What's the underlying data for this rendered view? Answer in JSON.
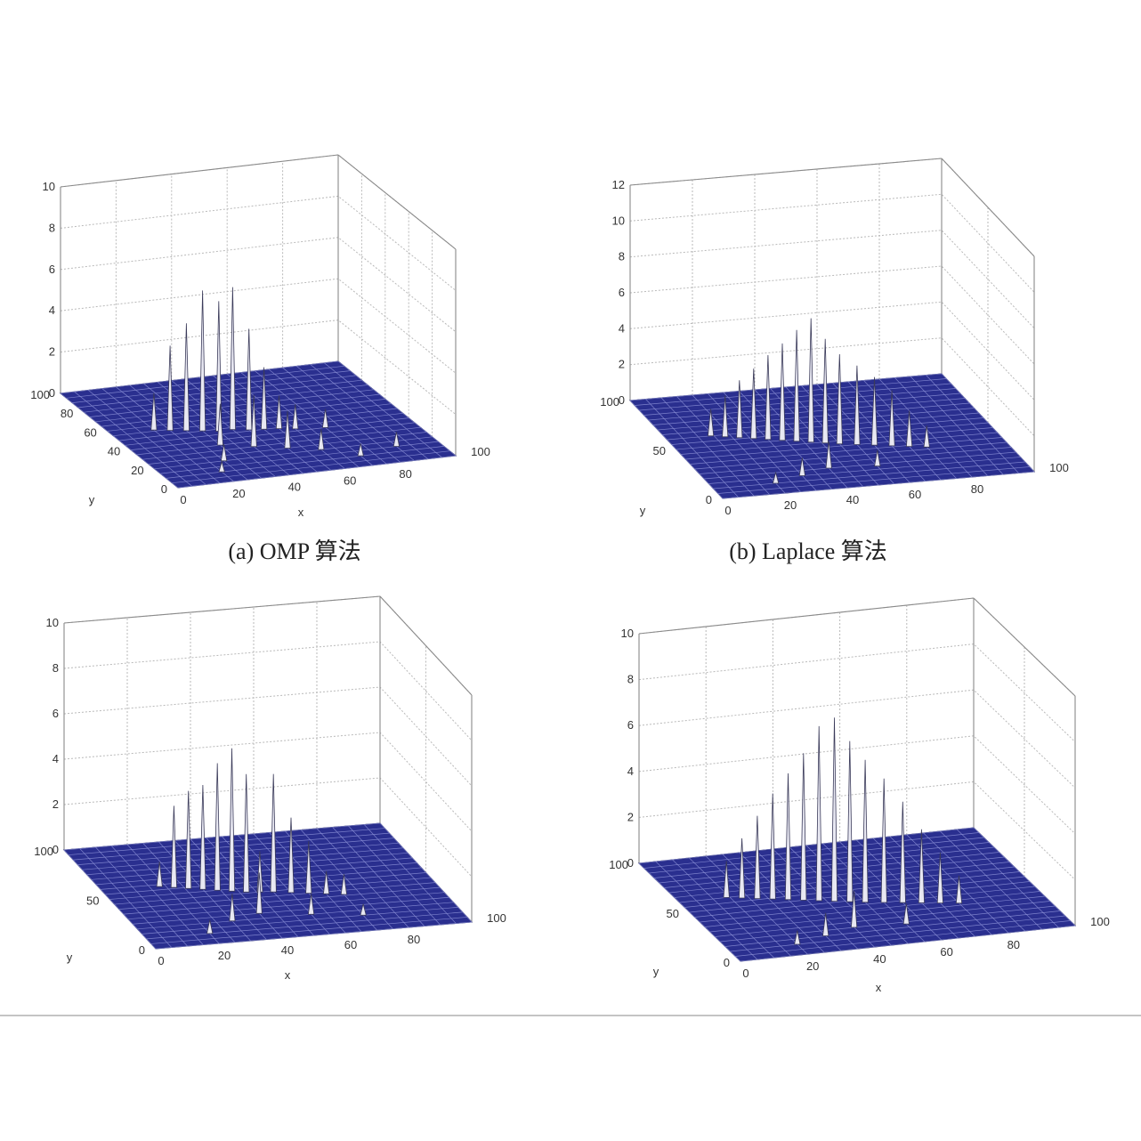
{
  "chart_data": [
    {
      "type": "surface3d",
      "caption": "(a) OMP 算法",
      "xlabel": "x",
      "ylabel": "y",
      "zlabel": "",
      "xlim": [
        0,
        100
      ],
      "ylim": [
        0,
        100
      ],
      "zlim": [
        0,
        10
      ],
      "xticks": [
        "0",
        "20",
        "40",
        "60",
        "80",
        "100"
      ],
      "yticks": [
        "0",
        "20",
        "40",
        "60",
        "80",
        "100"
      ],
      "zticks": [
        "0",
        "2",
        "4",
        "6",
        "8",
        "10"
      ],
      "grid": true,
      "surface_color": "#2a2f8f",
      "peaks": [
        {
          "x": 30,
          "y": 50,
          "z": 6.8
        },
        {
          "x": 40,
          "y": 48,
          "z": 6.9
        },
        {
          "x": 35,
          "y": 48,
          "z": 6.3
        },
        {
          "x": 25,
          "y": 52,
          "z": 5.2
        },
        {
          "x": 45,
          "y": 46,
          "z": 4.9
        },
        {
          "x": 20,
          "y": 54,
          "z": 4.1
        },
        {
          "x": 50,
          "y": 45,
          "z": 3.0
        },
        {
          "x": 55,
          "y": 44,
          "z": 1.6
        },
        {
          "x": 15,
          "y": 56,
          "z": 1.8
        },
        {
          "x": 60,
          "y": 42,
          "z": 1.2
        },
        {
          "x": 70,
          "y": 40,
          "z": 0.9
        },
        {
          "x": 85,
          "y": 15,
          "z": 0.7
        },
        {
          "x": 40,
          "y": 30,
          "z": 2.5
        },
        {
          "x": 50,
          "y": 25,
          "z": 1.8
        },
        {
          "x": 30,
          "y": 35,
          "z": 2.0
        },
        {
          "x": 60,
          "y": 20,
          "z": 1.0
        },
        {
          "x": 25,
          "y": 20,
          "z": 0.8
        },
        {
          "x": 70,
          "y": 10,
          "z": 0.6
        },
        {
          "x": 20,
          "y": 10,
          "z": 0.5
        }
      ]
    },
    {
      "type": "surface3d",
      "caption": "(b) Laplace 算法",
      "xlabel": "",
      "ylabel": "y",
      "zlabel": "",
      "xlim": [
        0,
        100
      ],
      "ylim": [
        0,
        100
      ],
      "zlim": [
        0,
        12
      ],
      "xticks": [
        "0",
        "20",
        "40",
        "60",
        "80",
        "100"
      ],
      "yticks": [
        "0",
        "50",
        "100"
      ],
      "zticks": [
        "0",
        "2",
        "4",
        "6",
        "8",
        "10",
        "12"
      ],
      "grid": true,
      "surface_color": "#2a2f8f",
      "peaks": [
        {
          "x": 42,
          "y": 46,
          "z": 6.9
        },
        {
          "x": 38,
          "y": 48,
          "z": 6.2
        },
        {
          "x": 46,
          "y": 44,
          "z": 5.8
        },
        {
          "x": 34,
          "y": 50,
          "z": 5.4
        },
        {
          "x": 50,
          "y": 42,
          "z": 5.0
        },
        {
          "x": 30,
          "y": 52,
          "z": 4.7
        },
        {
          "x": 55,
          "y": 40,
          "z": 4.4
        },
        {
          "x": 26,
          "y": 54,
          "z": 3.9
        },
        {
          "x": 60,
          "y": 38,
          "z": 3.8
        },
        {
          "x": 22,
          "y": 56,
          "z": 3.2
        },
        {
          "x": 65,
          "y": 36,
          "z": 3.1
        },
        {
          "x": 18,
          "y": 58,
          "z": 2.3
        },
        {
          "x": 70,
          "y": 34,
          "z": 2.0
        },
        {
          "x": 14,
          "y": 60,
          "z": 1.5
        },
        {
          "x": 75,
          "y": 32,
          "z": 1.2
        },
        {
          "x": 40,
          "y": 20,
          "z": 1.5
        },
        {
          "x": 30,
          "y": 15,
          "z": 1.0
        },
        {
          "x": 55,
          "y": 18,
          "z": 0.9
        },
        {
          "x": 20,
          "y": 10,
          "z": 0.6
        }
      ]
    },
    {
      "type": "surface3d",
      "caption": "",
      "xlabel": "x",
      "ylabel": "y",
      "zlabel": "",
      "xlim": [
        0,
        100
      ],
      "ylim": [
        0,
        100
      ],
      "zlim": [
        0,
        10
      ],
      "xticks": [
        "0",
        "20",
        "40",
        "60",
        "80",
        "100"
      ],
      "yticks": [
        "0",
        "50",
        "100"
      ],
      "zticks": [
        "0",
        "2",
        "4",
        "6",
        "8",
        "10"
      ],
      "grid": true,
      "surface_color": "#2a2f8f",
      "peaks": [
        {
          "x": 38,
          "y": 48,
          "z": 6.3
        },
        {
          "x": 34,
          "y": 50,
          "z": 5.6
        },
        {
          "x": 42,
          "y": 46,
          "z": 5.2
        },
        {
          "x": 30,
          "y": 52,
          "z": 4.6
        },
        {
          "x": 26,
          "y": 54,
          "z": 4.3
        },
        {
          "x": 50,
          "y": 44,
          "z": 5.2
        },
        {
          "x": 22,
          "y": 56,
          "z": 3.6
        },
        {
          "x": 55,
          "y": 42,
          "z": 3.3
        },
        {
          "x": 60,
          "y": 40,
          "z": 2.3
        },
        {
          "x": 46,
          "y": 45,
          "z": 1.8
        },
        {
          "x": 65,
          "y": 38,
          "z": 1.0
        },
        {
          "x": 18,
          "y": 58,
          "z": 1.1
        },
        {
          "x": 70,
          "y": 36,
          "z": 0.9
        },
        {
          "x": 40,
          "y": 25,
          "z": 1.8
        },
        {
          "x": 30,
          "y": 20,
          "z": 1.2
        },
        {
          "x": 55,
          "y": 20,
          "z": 0.9
        },
        {
          "x": 20,
          "y": 10,
          "z": 0.6
        },
        {
          "x": 70,
          "y": 15,
          "z": 0.5
        }
      ]
    },
    {
      "type": "surface3d",
      "caption": "",
      "xlabel": "x",
      "ylabel": "y",
      "zlabel": "",
      "xlim": [
        0,
        100
      ],
      "ylim": [
        0,
        100
      ],
      "zlim": [
        0,
        10
      ],
      "xticks": [
        "0",
        "20",
        "40",
        "60",
        "80",
        "100"
      ],
      "yticks": [
        "0",
        "50",
        "100"
      ],
      "zticks": [
        "0",
        "2",
        "4",
        "6",
        "8",
        "10"
      ],
      "grid": true,
      "surface_color": "#2a2f8f",
      "peaks": [
        {
          "x": 42,
          "y": 46,
          "z": 8.0
        },
        {
          "x": 38,
          "y": 48,
          "z": 7.6
        },
        {
          "x": 46,
          "y": 44,
          "z": 7.0
        },
        {
          "x": 34,
          "y": 50,
          "z": 6.4
        },
        {
          "x": 50,
          "y": 42,
          "z": 6.2
        },
        {
          "x": 30,
          "y": 52,
          "z": 5.5
        },
        {
          "x": 55,
          "y": 40,
          "z": 5.4
        },
        {
          "x": 26,
          "y": 54,
          "z": 4.6
        },
        {
          "x": 60,
          "y": 38,
          "z": 4.4
        },
        {
          "x": 22,
          "y": 56,
          "z": 3.6
        },
        {
          "x": 65,
          "y": 36,
          "z": 3.2
        },
        {
          "x": 18,
          "y": 58,
          "z": 2.6
        },
        {
          "x": 70,
          "y": 34,
          "z": 2.2
        },
        {
          "x": 14,
          "y": 60,
          "z": 1.6
        },
        {
          "x": 75,
          "y": 32,
          "z": 1.2
        },
        {
          "x": 40,
          "y": 20,
          "z": 1.6
        },
        {
          "x": 30,
          "y": 15,
          "z": 1.0
        },
        {
          "x": 55,
          "y": 18,
          "z": 0.9
        },
        {
          "x": 20,
          "y": 10,
          "z": 0.6
        }
      ]
    }
  ]
}
